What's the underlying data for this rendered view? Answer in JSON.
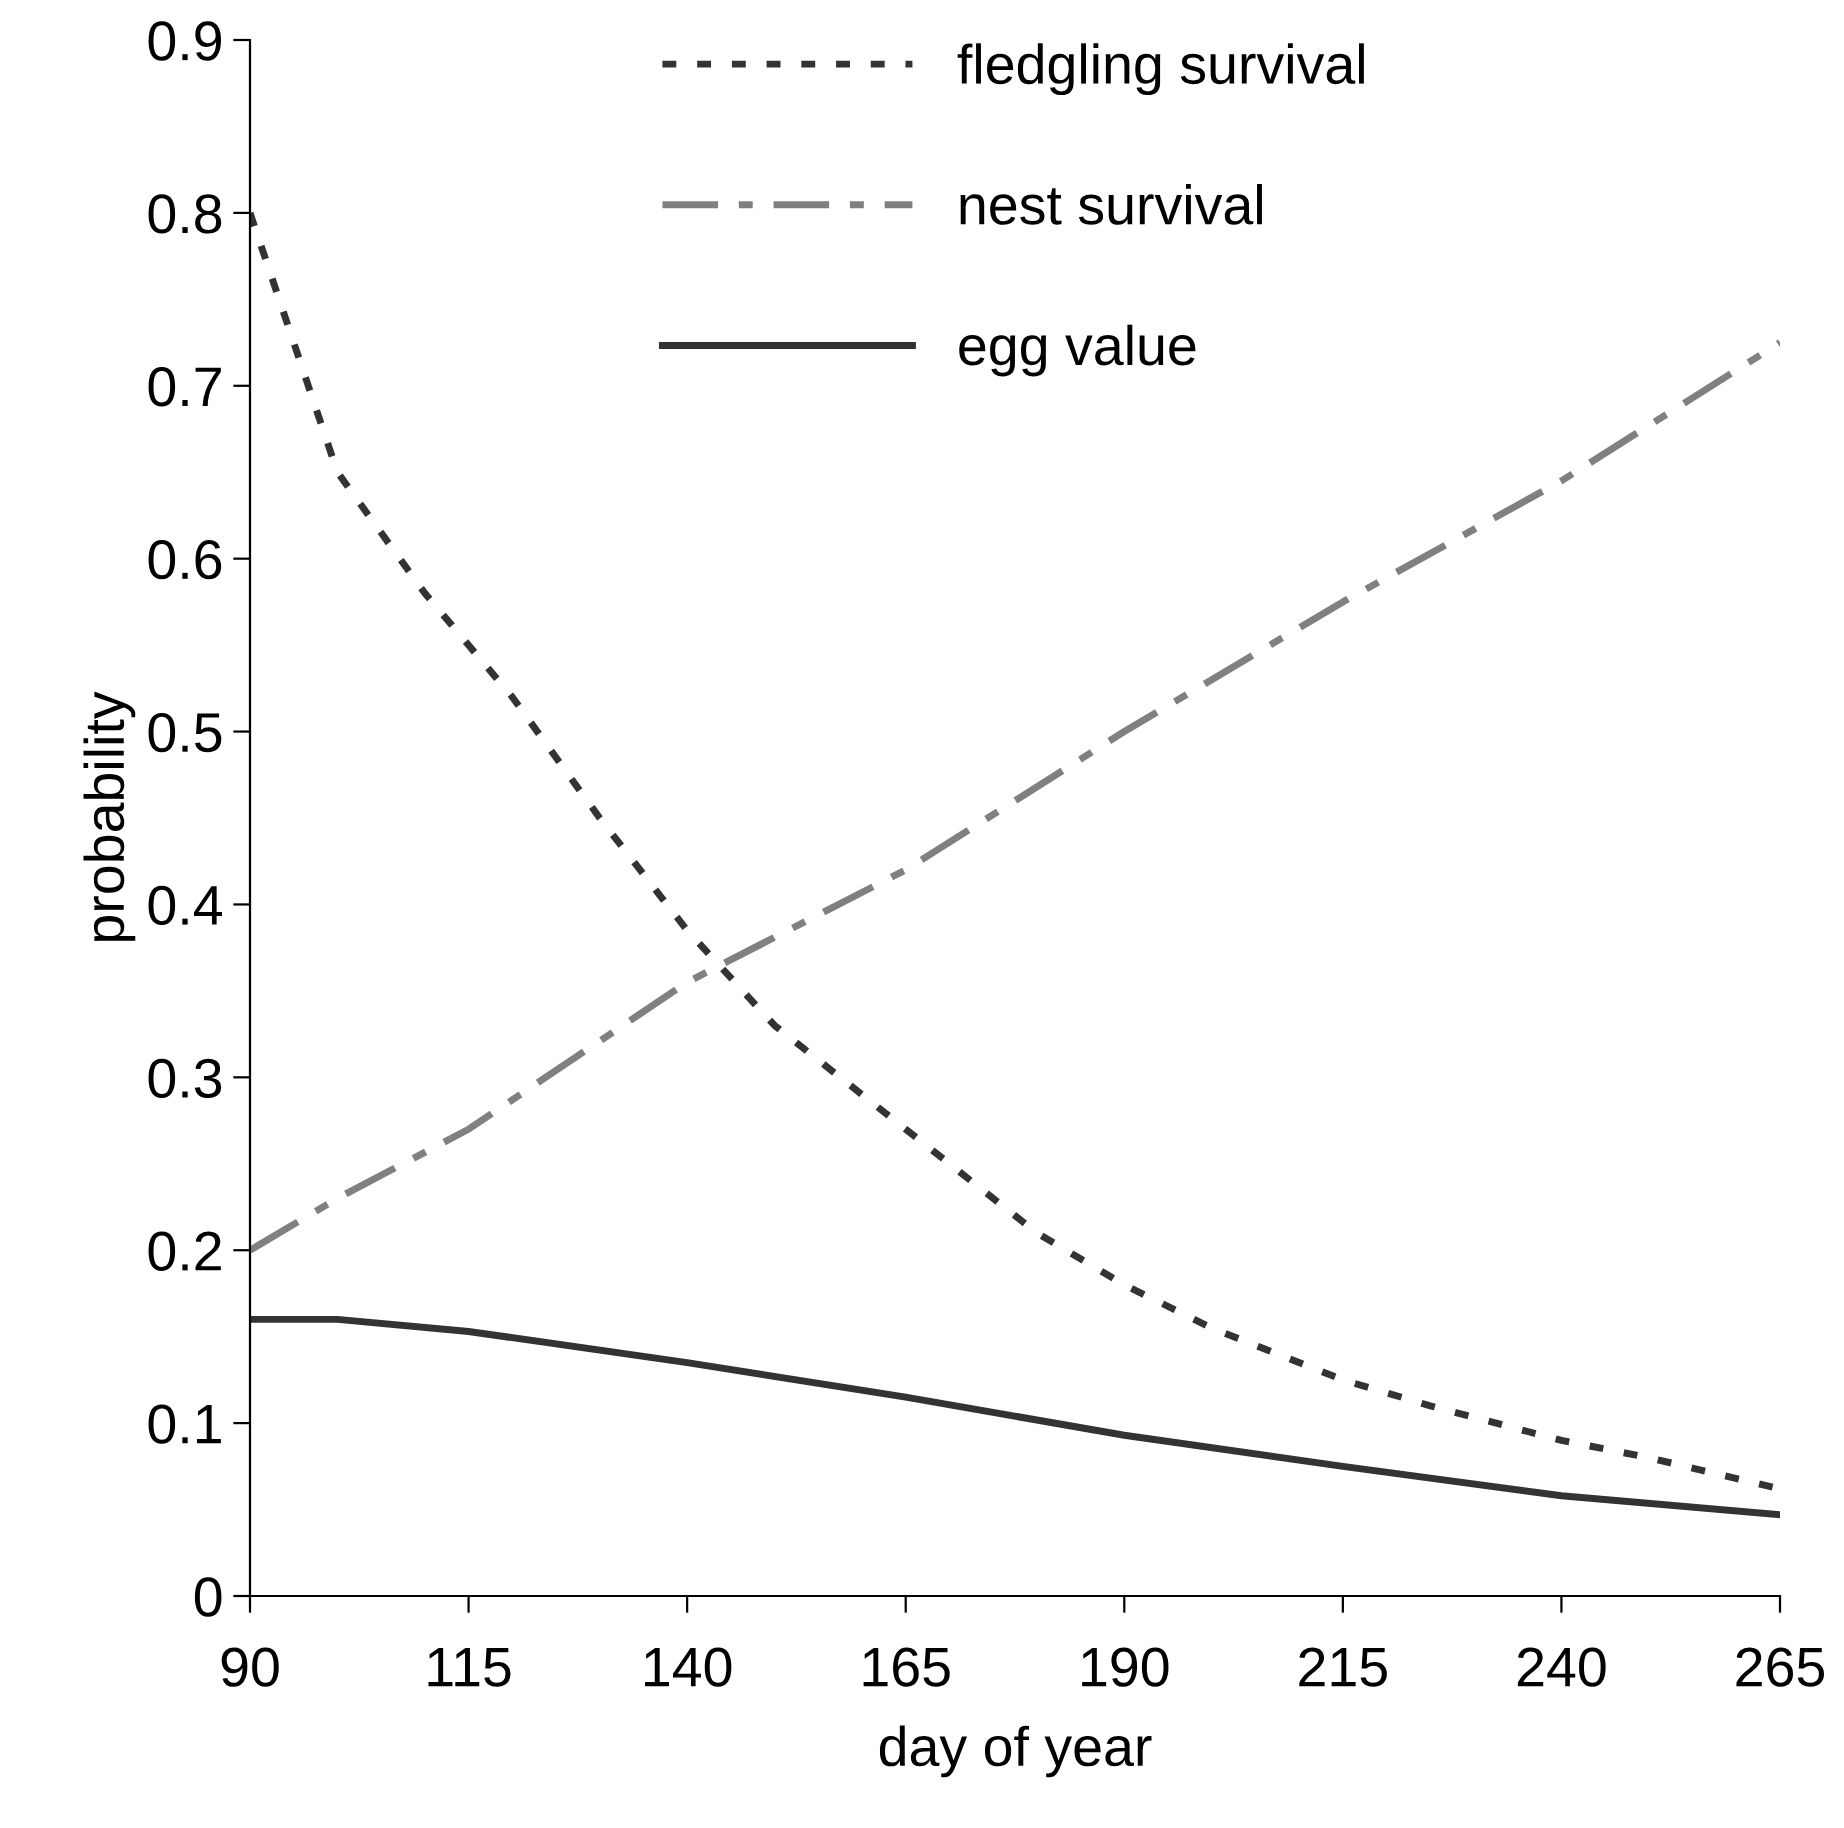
{
  "chart_data": {
    "type": "line",
    "xlabel": "day of year",
    "ylabel": "probability",
    "xlim": [
      90,
      265
    ],
    "xticks": [
      90,
      115,
      140,
      165,
      190,
      215,
      240,
      265
    ],
    "ylim": [
      0,
      0.9
    ],
    "yticks": [
      0,
      0.1,
      0.2,
      0.3,
      0.4,
      0.5,
      0.6,
      0.7,
      0.8,
      0.9
    ],
    "grid": false,
    "legend": "top",
    "marker": "none",
    "series": [
      {
        "name": "fledgling survival",
        "color": "#333333",
        "line_style": "dotted",
        "x": [
          90,
          100,
          110,
          120,
          130,
          140,
          150,
          165,
          180,
          190,
          200,
          215,
          225,
          240,
          250,
          265
        ],
        "values": [
          0.8,
          0.65,
          0.58,
          0.52,
          0.45,
          0.385,
          0.33,
          0.27,
          0.21,
          0.18,
          0.155,
          0.125,
          0.11,
          0.09,
          0.08,
          0.062
        ]
      },
      {
        "name": "nest survival",
        "color": "#808080",
        "line_style": "dashdot",
        "x": [
          90,
          100,
          115,
          140,
          165,
          190,
          215,
          240,
          265
        ],
        "values": [
          0.2,
          0.23,
          0.27,
          0.355,
          0.42,
          0.5,
          0.575,
          0.645,
          0.725
        ]
      },
      {
        "name": "egg value",
        "color": "#333333",
        "line_style": "solid",
        "x": [
          90,
          100,
          115,
          140,
          165,
          190,
          215,
          240,
          265
        ],
        "values": [
          0.16,
          0.16,
          0.153,
          0.135,
          0.115,
          0.093,
          0.075,
          0.058,
          0.047
        ]
      }
    ]
  }
}
